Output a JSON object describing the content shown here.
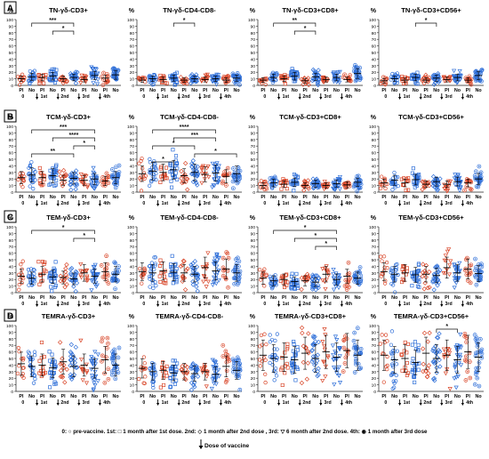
{
  "figure": {
    "colors": {
      "pl": "#d9482b",
      "no": "#2f6fd8",
      "axis": "#222222",
      "sig": "#111111"
    },
    "footer": {
      "legend_text": "0: ○ pre-vaccine. 1st: □ 1 month after 1st dose. 2nd: ◇ 1 month after 2nd dose , 3rd: ▽ 6 month after 2nd dose. 4th: ◉ 1 month after 3rd dose",
      "arrow_text": "Dose of vaccine"
    }
  },
  "chart_data": [
    {
      "row": "A",
      "title": "TN-γδ-CD3+",
      "type": "scatter",
      "ylabel": "%",
      "ylim": [
        0,
        100
      ],
      "yticks": [
        0,
        10,
        20,
        30,
        40,
        50,
        60,
        70,
        80,
        90,
        100
      ],
      "categories": [
        "Pl",
        "No",
        "Pl",
        "No",
        "Pl",
        "No",
        "Pl",
        "No",
        "Pl",
        "No"
      ],
      "time_labels": [
        "0",
        "1st",
        "2nd",
        "3rd",
        "4th"
      ],
      "series": [
        {
          "name": "Pl",
          "medians": [
            10,
            12,
            10,
            9,
            11
          ]
        },
        {
          "name": "No",
          "medians": [
            13,
            14,
            12,
            15,
            16
          ]
        }
      ],
      "significance": [
        {
          "from": 1,
          "to": 5,
          "label": "***"
        },
        {
          "from": 3,
          "to": 5,
          "label": "*"
        }
      ]
    },
    {
      "row": "A",
      "title": "TN-γδ-CD4-CD8-",
      "type": "scatter",
      "ylabel": "%",
      "ylim": [
        0,
        100
      ],
      "yticks": [
        0,
        10,
        20,
        30,
        40,
        50,
        60,
        70,
        80,
        90,
        100
      ],
      "categories": [
        "Pl",
        "No",
        "Pl",
        "No",
        "Pl",
        "No",
        "Pl",
        "No",
        "Pl",
        "No"
      ],
      "time_labels": [
        "0",
        "1st",
        "2nd",
        "3rd",
        "4th"
      ],
      "series": [
        {
          "name": "Pl",
          "medians": [
            8,
            9,
            8,
            9,
            8
          ]
        },
        {
          "name": "No",
          "medians": [
            10,
            11,
            10,
            10,
            11
          ]
        }
      ],
      "significance": [
        {
          "from": 3,
          "to": 5,
          "label": "*"
        }
      ]
    },
    {
      "row": "A",
      "title": "TN-γδ-CD3+CD8+",
      "type": "scatter",
      "ylabel": "%",
      "ylim": [
        0,
        100
      ],
      "yticks": [
        0,
        10,
        20,
        30,
        40,
        50,
        60,
        70,
        80,
        90,
        100
      ],
      "categories": [
        "Pl",
        "No",
        "Pl",
        "No",
        "Pl",
        "No",
        "Pl",
        "No",
        "Pl",
        "No"
      ],
      "time_labels": [
        "0",
        "1st",
        "2nd",
        "3rd",
        "4th"
      ],
      "series": [
        {
          "name": "Pl",
          "medians": [
            8,
            10,
            7,
            9,
            9
          ]
        },
        {
          "name": "No",
          "medians": [
            12,
            14,
            13,
            12,
            18
          ]
        }
      ],
      "significance": [
        {
          "from": 1,
          "to": 5,
          "label": "**"
        },
        {
          "from": 3,
          "to": 5,
          "label": "*"
        }
      ]
    },
    {
      "row": "A",
      "title": "TN-γδ-CD3+CD56+",
      "type": "scatter",
      "ylabel": "%",
      "ylim": [
        0,
        100
      ],
      "yticks": [
        0,
        10,
        20,
        30,
        40,
        50,
        60,
        70,
        80,
        90,
        100
      ],
      "categories": [
        "Pl",
        "No",
        "Pl",
        "No",
        "Pl",
        "No",
        "Pl",
        "No",
        "Pl",
        "No"
      ],
      "time_labels": [
        "0",
        "1st",
        "2nd",
        "3rd",
        "4th"
      ],
      "series": [
        {
          "name": "Pl",
          "medians": [
            7,
            8,
            8,
            9,
            8
          ]
        },
        {
          "name": "No",
          "medians": [
            10,
            12,
            11,
            12,
            15
          ]
        }
      ],
      "significance": [
        {
          "from": 3,
          "to": 5,
          "label": "*"
        }
      ]
    },
    {
      "row": "B",
      "title": "TCM-γδ-CD3+",
      "type": "scatter",
      "ylabel": "%",
      "ylim": [
        0,
        100
      ],
      "yticks": [
        0,
        10,
        20,
        30,
        40,
        50,
        60,
        70,
        80,
        90,
        100
      ],
      "categories": [
        "Pl",
        "No",
        "Pl",
        "No",
        "Pl",
        "No",
        "Pl",
        "No",
        "Pl",
        "No"
      ],
      "time_labels": [
        "0",
        "1st",
        "2nd",
        "3rd",
        "4th"
      ],
      "series": [
        {
          "name": "Pl",
          "medians": [
            22,
            22,
            18,
            18,
            17
          ]
        },
        {
          "name": "No",
          "medians": [
            26,
            25,
            21,
            20,
            22
          ]
        }
      ],
      "significance": [
        {
          "from": 1,
          "to": 7,
          "label": "***"
        },
        {
          "from": 3,
          "to": 7,
          "label": "****"
        },
        {
          "from": 5,
          "to": 7,
          "label": "*"
        },
        {
          "from": 1,
          "to": 5,
          "label": "**"
        }
      ]
    },
    {
      "row": "B",
      "title": "TCM-γδ-CD4-CD8-",
      "type": "scatter",
      "ylabel": "%",
      "ylim": [
        0,
        100
      ],
      "yticks": [
        0,
        10,
        20,
        30,
        40,
        50,
        60,
        70,
        80,
        90,
        100
      ],
      "categories": [
        "Pl",
        "No",
        "Pl",
        "No",
        "Pl",
        "No",
        "Pl",
        "No",
        "Pl",
        "No"
      ],
      "time_labels": [
        "0",
        "1st",
        "2nd",
        "3rd",
        "4th"
      ],
      "series": [
        {
          "name": "Pl",
          "medians": [
            28,
            30,
            25,
            27,
            24
          ]
        },
        {
          "name": "No",
          "medians": [
            32,
            34,
            30,
            29,
            28
          ]
        }
      ],
      "significance": [
        {
          "from": 1,
          "to": 7,
          "label": "****"
        },
        {
          "from": 3,
          "to": 7,
          "label": "***"
        },
        {
          "from": 1,
          "to": 5,
          "label": "*"
        },
        {
          "from": 5,
          "to": 9,
          "label": "*"
        },
        {
          "from": 1,
          "to": 3,
          "label": "*"
        }
      ]
    },
    {
      "row": "B",
      "title": "TCM-γδ-CD3+CD8+",
      "type": "scatter",
      "ylabel": "%",
      "ylim": [
        0,
        100
      ],
      "yticks": [
        0,
        10,
        20,
        30,
        40,
        50,
        60,
        70,
        80,
        90,
        100
      ],
      "categories": [
        "Pl",
        "No",
        "Pl",
        "No",
        "Pl",
        "No",
        "Pl",
        "No",
        "Pl",
        "No"
      ],
      "time_labels": [
        "0",
        "1st",
        "2nd",
        "3rd",
        "4th"
      ],
      "series": [
        {
          "name": "Pl",
          "medians": [
            10,
            12,
            10,
            10,
            11
          ]
        },
        {
          "name": "No",
          "medians": [
            14,
            15,
            13,
            13,
            15
          ]
        }
      ],
      "significance": []
    },
    {
      "row": "B",
      "title": "TCM-γδ-CD3+CD56+",
      "type": "scatter",
      "ylabel": "%",
      "ylim": [
        0,
        100
      ],
      "yticks": [
        0,
        10,
        20,
        30,
        40,
        50,
        60,
        70,
        80,
        90,
        100
      ],
      "categories": [
        "Pl",
        "No",
        "Pl",
        "No",
        "Pl",
        "No",
        "Pl",
        "No",
        "Pl",
        "No"
      ],
      "time_labels": [
        "0",
        "1st",
        "2nd",
        "3rd",
        "4th"
      ],
      "series": [
        {
          "name": "Pl",
          "medians": [
            14,
            14,
            12,
            12,
            14
          ]
        },
        {
          "name": "No",
          "medians": [
            18,
            19,
            16,
            16,
            20
          ]
        }
      ],
      "significance": []
    },
    {
      "row": "C",
      "title": "TEM-γδ-CD3+",
      "type": "scatter",
      "ylabel": "%",
      "ylim": [
        0,
        100
      ],
      "yticks": [
        0,
        10,
        20,
        30,
        40,
        50,
        60,
        70,
        80,
        90,
        100
      ],
      "categories": [
        "Pl",
        "No",
        "Pl",
        "No",
        "Pl",
        "No",
        "Pl",
        "No",
        "Pl",
        "No"
      ],
      "time_labels": [
        "0",
        "1st",
        "2nd",
        "3rd",
        "4th"
      ],
      "series": [
        {
          "name": "Pl",
          "medians": [
            25,
            28,
            23,
            30,
            32
          ]
        },
        {
          "name": "No",
          "medians": [
            22,
            24,
            21,
            25,
            28
          ]
        }
      ],
      "significance": [
        {
          "from": 1,
          "to": 7,
          "label": "*"
        },
        {
          "from": 5,
          "to": 7,
          "label": "*"
        }
      ]
    },
    {
      "row": "C",
      "title": "TEM-γδ-CD4-CD8-",
      "type": "scatter",
      "ylabel": "%",
      "ylim": [
        0,
        100
      ],
      "yticks": [
        0,
        10,
        20,
        30,
        40,
        50,
        60,
        70,
        80,
        90,
        100
      ],
      "categories": [
        "Pl",
        "No",
        "Pl",
        "No",
        "Pl",
        "No",
        "Pl",
        "No",
        "Pl",
        "No"
      ],
      "time_labels": [
        "0",
        "1st",
        "2nd",
        "3rd",
        "4th"
      ],
      "series": [
        {
          "name": "Pl",
          "medians": [
            32,
            33,
            30,
            38,
            36
          ]
        },
        {
          "name": "No",
          "medians": [
            30,
            31,
            28,
            33,
            30
          ]
        }
      ],
      "significance": []
    },
    {
      "row": "C",
      "title": "TEM-γδ-CD3+CD8+",
      "type": "scatter",
      "ylabel": "%",
      "ylim": [
        0,
        100
      ],
      "yticks": [
        0,
        10,
        20,
        30,
        40,
        50,
        60,
        70,
        80,
        90,
        100
      ],
      "categories": [
        "Pl",
        "No",
        "Pl",
        "No",
        "Pl",
        "No",
        "Pl",
        "No",
        "Pl",
        "No"
      ],
      "time_labels": [
        "0",
        "1st",
        "2nd",
        "3rd",
        "4th"
      ],
      "series": [
        {
          "name": "Pl",
          "medians": [
            22,
            20,
            18,
            28,
            25
          ]
        },
        {
          "name": "No",
          "medians": [
            18,
            17,
            16,
            20,
            22
          ]
        }
      ],
      "significance": [
        {
          "from": 1,
          "to": 7,
          "label": "*"
        },
        {
          "from": 3,
          "to": 7,
          "label": "*"
        },
        {
          "from": 5,
          "to": 7,
          "label": "*"
        }
      ]
    },
    {
      "row": "C",
      "title": "TEM-γδ-CD3+CD56+",
      "type": "scatter",
      "ylabel": "%",
      "ylim": [
        0,
        100
      ],
      "yticks": [
        0,
        10,
        20,
        30,
        40,
        50,
        60,
        70,
        80,
        90,
        100
      ],
      "categories": [
        "Pl",
        "No",
        "Pl",
        "No",
        "Pl",
        "No",
        "Pl",
        "No",
        "Pl",
        "No"
      ],
      "time_labels": [
        "0",
        "1st",
        "2nd",
        "3rd",
        "4th"
      ],
      "series": [
        {
          "name": "Pl",
          "medians": [
            32,
            30,
            28,
            38,
            36
          ]
        },
        {
          "name": "No",
          "medians": [
            28,
            27,
            26,
            30,
            29
          ]
        }
      ],
      "significance": []
    },
    {
      "row": "D",
      "title": "TEMRA-γδ-CD3+",
      "type": "scatter",
      "ylabel": "%",
      "ylim": [
        0,
        100
      ],
      "yticks": [
        0,
        10,
        20,
        30,
        40,
        50,
        60,
        70,
        80,
        90,
        100
      ],
      "categories": [
        "Pl",
        "No",
        "Pl",
        "No",
        "Pl",
        "No",
        "Pl",
        "No",
        "Pl",
        "No"
      ],
      "time_labels": [
        "0",
        "1st",
        "2nd",
        "3rd",
        "4th"
      ],
      "series": [
        {
          "name": "Pl",
          "medians": [
            42,
            40,
            45,
            40,
            48
          ]
        },
        {
          "name": "No",
          "medians": [
            38,
            36,
            38,
            35,
            40
          ]
        }
      ],
      "significance": []
    },
    {
      "row": "D",
      "title": "TEMRA-γδ-CD4-CD8-",
      "type": "scatter",
      "ylabel": "%",
      "ylim": [
        0,
        100
      ],
      "yticks": [
        0,
        10,
        20,
        30,
        40,
        50,
        60,
        70,
        80,
        90,
        100
      ],
      "categories": [
        "Pl",
        "No",
        "Pl",
        "No",
        "Pl",
        "No",
        "Pl",
        "No",
        "Pl",
        "No"
      ],
      "time_labels": [
        "0",
        "1st",
        "2nd",
        "3rd",
        "4th"
      ],
      "series": [
        {
          "name": "Pl",
          "medians": [
            35,
            32,
            30,
            30,
            38
          ]
        },
        {
          "name": "No",
          "medians": [
            30,
            28,
            27,
            26,
            32
          ]
        }
      ],
      "significance": []
    },
    {
      "row": "D",
      "title": "TEMRA-γδ-CD3+CD8+",
      "type": "scatter",
      "ylabel": "%",
      "ylim": [
        0,
        100
      ],
      "yticks": [
        0,
        10,
        20,
        30,
        40,
        50,
        60,
        70,
        80,
        90,
        100
      ],
      "categories": [
        "Pl",
        "No",
        "Pl",
        "No",
        "Pl",
        "No",
        "Pl",
        "No",
        "Pl",
        "No"
      ],
      "time_labels": [
        "0",
        "1st",
        "2nd",
        "3rd",
        "4th"
      ],
      "series": [
        {
          "name": "Pl",
          "medians": [
            55,
            52,
            58,
            60,
            62
          ]
        },
        {
          "name": "No",
          "medians": [
            50,
            48,
            50,
            52,
            55
          ]
        }
      ],
      "significance": []
    },
    {
      "row": "D",
      "title": "TEMRA-γδ-CD3+CD56+",
      "type": "scatter",
      "ylabel": "%",
      "ylim": [
        0,
        100
      ],
      "yticks": [
        0,
        10,
        20,
        30,
        40,
        50,
        60,
        70,
        80,
        90,
        100
      ],
      "categories": [
        "Pl",
        "No",
        "Pl",
        "No",
        "Pl",
        "No",
        "Pl",
        "No",
        "Pl",
        "No"
      ],
      "time_labels": [
        "0",
        "1st",
        "2nd",
        "3rd",
        "4th"
      ],
      "series": [
        {
          "name": "Pl",
          "medians": [
            55,
            50,
            58,
            55,
            60
          ]
        },
        {
          "name": "No",
          "medians": [
            48,
            44,
            50,
            48,
            52
          ]
        }
      ],
      "significance": [
        {
          "from": 5,
          "to": 7,
          "label": "*"
        }
      ]
    }
  ]
}
